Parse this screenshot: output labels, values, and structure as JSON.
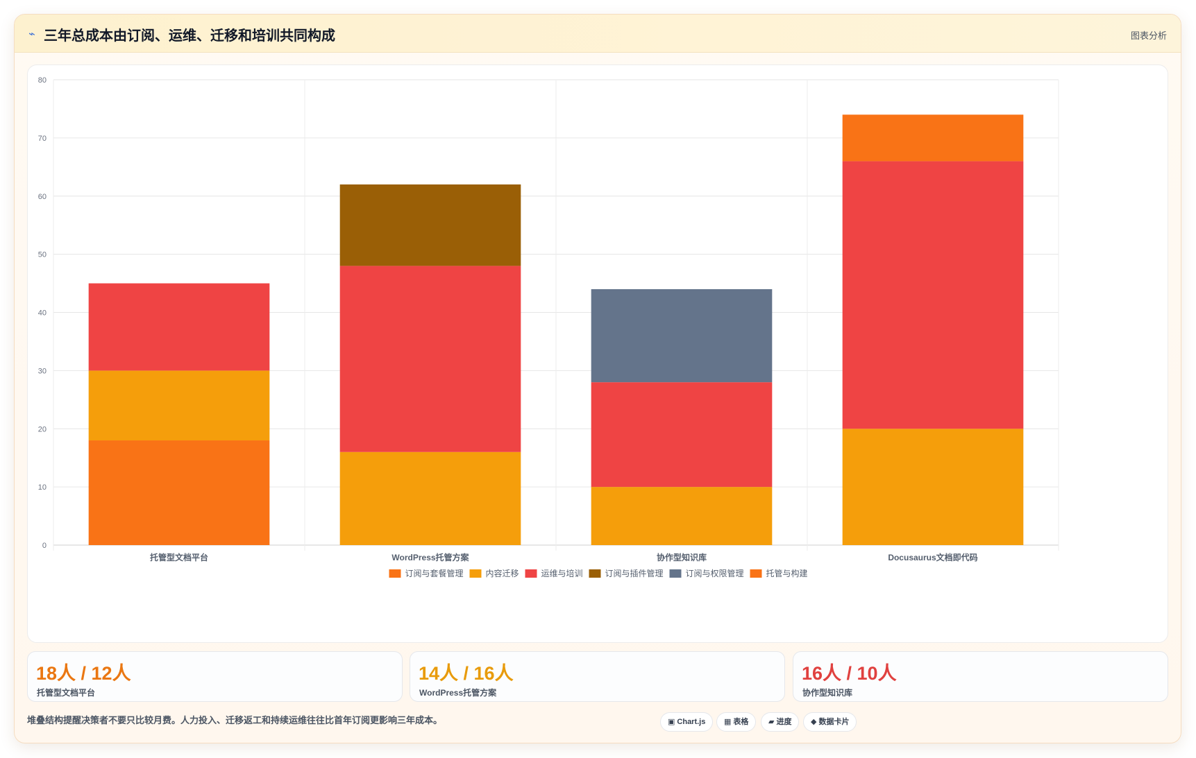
{
  "header": {
    "icon": "trend-icon",
    "title": "三年总成本由订阅、运维、迁移和培训共同构成",
    "action_label": "图表分析"
  },
  "chart_data": {
    "type": "bar",
    "stacked": true,
    "categories": [
      "托管型文档平台",
      "WordPress托管方案",
      "协作型知识库",
      "Docusaurus文档即代码"
    ],
    "ylim": [
      0,
      80
    ],
    "yticks": [
      0,
      10,
      20,
      30,
      40,
      50,
      60,
      70,
      80
    ],
    "grid": true,
    "legend_position": "bottom",
    "series": [
      {
        "name": "订阅与套餐管理",
        "color": "#f97316",
        "values": [
          18,
          0,
          0,
          0
        ]
      },
      {
        "name": "内容迁移",
        "color": "#f59e0b",
        "values": [
          12,
          16,
          10,
          20
        ]
      },
      {
        "name": "运维与培训",
        "color": "#ef4444",
        "values": [
          15,
          32,
          18,
          46
        ]
      },
      {
        "name": "订阅与插件管理",
        "color": "#9a5f06",
        "values": [
          0,
          14,
          0,
          0
        ]
      },
      {
        "name": "订阅与权限管理",
        "color": "#64748b",
        "values": [
          0,
          0,
          16,
          0
        ]
      },
      {
        "name": "托管与构建",
        "color": "#f97316",
        "values": [
          0,
          0,
          0,
          8
        ]
      }
    ]
  },
  "stats": [
    {
      "value": "18人 / 12人",
      "label": "托管型文档平台",
      "color": "#ea7712"
    },
    {
      "value": "14人 / 16人",
      "label": "WordPress托管方案",
      "color": "#e89b0c"
    },
    {
      "value": "16人 / 10人",
      "label": "协作型知识库",
      "color": "#e0413f"
    }
  ],
  "footer": {
    "note": "堆叠结构提醒决策者不要只比较月费。人力投入、迁移返工和持续运维往往比首年订阅更影响三年成本。",
    "tags": [
      {
        "icon": "chart-icon",
        "glyph": "▣",
        "label": "Chart.js"
      },
      {
        "icon": "table-icon",
        "glyph": "▦",
        "label": "表格"
      },
      {
        "icon": "progress-icon",
        "glyph": "▰",
        "label": "进度"
      },
      {
        "icon": "card-icon",
        "glyph": "◆",
        "label": "数据卡片"
      }
    ]
  }
}
